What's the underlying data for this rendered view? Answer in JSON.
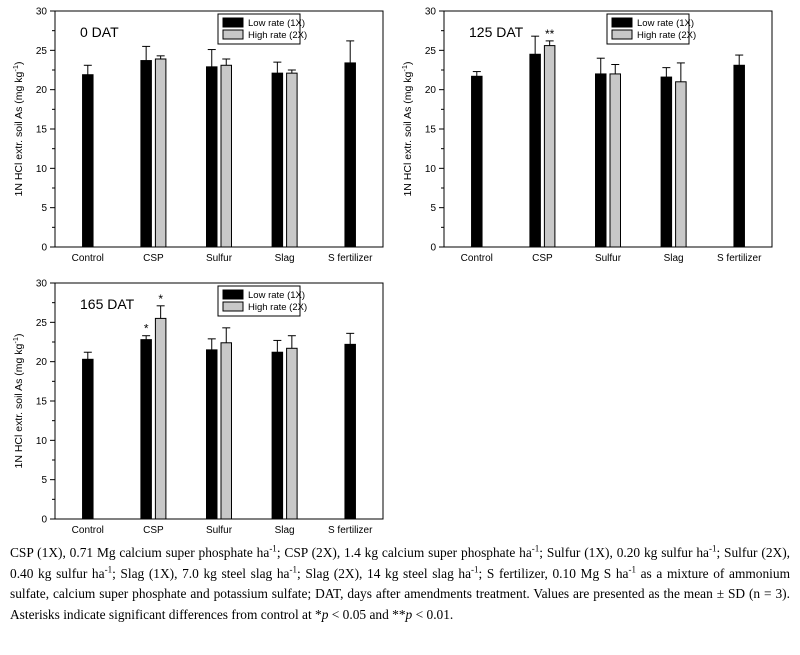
{
  "chart_data": [
    {
      "type": "bar",
      "title": "0 DAT",
      "ylabel": "1N HCl extr. soil As (mg kg",
      "ylabel_sup": "-1",
      "ylabel_end": ")",
      "ylim": [
        0,
        30
      ],
      "yticks": [
        "0",
        "5",
        "10",
        "15",
        "20",
        "25",
        "30"
      ],
      "categories": [
        "Control",
        "CSP",
        "Sulfur",
        "Slag",
        "S fertilizer"
      ],
      "series": [
        {
          "name": "Low rate (1X)",
          "color": "#000000",
          "values": [
            21.9,
            23.7,
            22.9,
            22.1,
            23.4
          ],
          "sd": [
            1.2,
            1.8,
            2.2,
            1.4,
            2.8
          ],
          "sig": [
            "",
            "",
            "",
            "",
            ""
          ]
        },
        {
          "name": "High rate (2X)",
          "color": "#c8c8c8",
          "values": [
            null,
            23.9,
            23.1,
            22.1,
            null
          ],
          "sd": [
            null,
            0.4,
            0.8,
            0.4,
            null
          ],
          "sig": [
            "",
            "",
            "",
            "",
            ""
          ]
        }
      ],
      "legend": "top-right"
    },
    {
      "type": "bar",
      "title": "125 DAT",
      "ylabel": "1N HCl extr. soil As (mg kg",
      "ylabel_sup": "-1",
      "ylabel_end": ")",
      "ylim": [
        0,
        30
      ],
      "yticks": [
        "0",
        "5",
        "10",
        "15",
        "20",
        "25",
        "30"
      ],
      "categories": [
        "Control",
        "CSP",
        "Sulfur",
        "Slag",
        "S fertilizer"
      ],
      "series": [
        {
          "name": "Low rate (1X)",
          "color": "#000000",
          "values": [
            21.7,
            24.5,
            22.0,
            21.6,
            23.1
          ],
          "sd": [
            0.6,
            2.3,
            2.0,
            1.2,
            1.3
          ],
          "sig": [
            "",
            "",
            "",
            "",
            ""
          ]
        },
        {
          "name": "High rate (2X)",
          "color": "#c8c8c8",
          "values": [
            null,
            25.6,
            22.0,
            21.0,
            null
          ],
          "sd": [
            null,
            0.6,
            1.2,
            2.4,
            null
          ],
          "sig": [
            "",
            "**",
            "",
            "",
            ""
          ]
        }
      ],
      "legend": "top-right"
    },
    {
      "type": "bar",
      "title": "165 DAT",
      "ylabel": "1N HCl extr. soil As (mg kg",
      "ylabel_sup": "-1",
      "ylabel_end": ")",
      "ylim": [
        0,
        30
      ],
      "yticks": [
        "0",
        "5",
        "10",
        "15",
        "20",
        "25",
        "30"
      ],
      "categories": [
        "Control",
        "CSP",
        "Sulfur",
        "Slag",
        "S fertilizer"
      ],
      "series": [
        {
          "name": "Low rate (1X)",
          "color": "#000000",
          "values": [
            20.3,
            22.8,
            21.5,
            21.2,
            22.2
          ],
          "sd": [
            0.9,
            0.5,
            1.4,
            1.5,
            1.4
          ],
          "sig": [
            "",
            "*",
            "",
            "",
            ""
          ]
        },
        {
          "name": "High rate (2X)",
          "color": "#c8c8c8",
          "values": [
            null,
            25.5,
            22.4,
            21.7,
            null
          ],
          "sd": [
            null,
            1.6,
            1.9,
            1.6,
            null
          ],
          "sig": [
            "",
            "*",
            "",
            "",
            ""
          ]
        }
      ],
      "legend": "top-right"
    }
  ],
  "caption": {
    "parts": [
      {
        "t": "CSP (1X), 0.71 Mg calcium super phosphate ha"
      },
      {
        "sup": "-1"
      },
      {
        "t": "; CSP (2X), 1.4 kg calcium super phosphate ha"
      },
      {
        "sup": "-1"
      },
      {
        "t": "; Sulfur (1X), 0.20 kg sulfur ha"
      },
      {
        "sup": "-1"
      },
      {
        "t": "; Sulfur (2X), 0.40 kg sulfur ha"
      },
      {
        "sup": "-1"
      },
      {
        "t": "; Slag (1X), 7.0 kg steel slag ha"
      },
      {
        "sup": "-1"
      },
      {
        "t": "; Slag (2X), 14 kg steel slag ha"
      },
      {
        "sup": "-1"
      },
      {
        "t": "; S fertilizer, 0.10 Mg S ha"
      },
      {
        "sup": "-1"
      },
      {
        "t": " as a mixture of ammonium sulfate, calcium super phosphate and potassium sulfate; DAT, days after amendments treatment. Values are presented as the mean ± SD (n = 3). Asterisks indicate significant differences from control at *"
      },
      {
        "i": "p"
      },
      {
        "t": " < 0.05 and **"
      },
      {
        "i": "p"
      },
      {
        "t": " < 0.01."
      }
    ]
  }
}
